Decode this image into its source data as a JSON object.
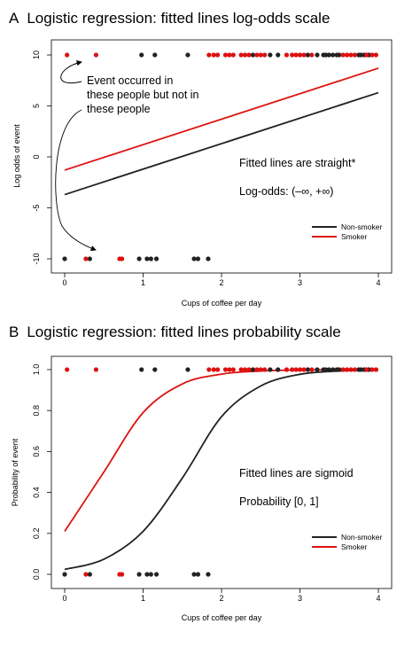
{
  "colors": {
    "nonsmoker": "#222222",
    "smoker": "#dd1111"
  },
  "chart_data": [
    {
      "panel_letter": "A",
      "type": "line",
      "title": "Logistic regression: fitted lines log-odds scale",
      "xlabel": "Cups of coffee per day",
      "ylabel": "Log odds of event",
      "xlim": [
        0,
        4
      ],
      "ylim": [
        -10,
        10
      ],
      "xticks": [
        0,
        1,
        2,
        3,
        4
      ],
      "yticks": [
        -10,
        -5,
        0,
        5,
        10
      ],
      "grid": false,
      "legend_position": "bottom-right",
      "series": [
        {
          "name": "Non-smoker",
          "color": "#222222",
          "x": [
            0,
            4
          ],
          "y": [
            -3.7,
            6.3
          ]
        },
        {
          "name": "Smoker",
          "color": "#dd1111",
          "x": [
            0,
            4
          ],
          "y": [
            -1.3,
            8.7
          ]
        }
      ],
      "points": {
        "nonsmoker_events": [
          0.98,
          1.15,
          1.57,
          2.4,
          2.62,
          2.72,
          3.1,
          3.22,
          3.3,
          3.33,
          3.37,
          3.42,
          3.47,
          3.5,
          3.75,
          3.78,
          3.82,
          3.88
        ],
        "smoker_events": [
          0.03,
          0.4,
          1.84,
          1.9,
          1.95,
          2.05,
          2.1,
          2.15,
          2.25,
          2.3,
          2.35,
          2.45,
          2.5,
          2.55,
          2.83,
          2.9,
          2.95,
          3.0,
          3.05,
          3.15,
          3.55,
          3.6,
          3.65,
          3.7,
          3.85,
          3.92,
          3.97
        ],
        "nonsmoker_no_events": [
          0.0,
          0.32,
          0.95,
          1.05,
          1.1,
          1.17,
          1.65,
          1.7,
          1.83
        ],
        "smoker_no_events": [
          0.27,
          0.7,
          0.73
        ]
      },
      "annotations": {
        "event_text": [
          "Event occurred in",
          "these people but not in",
          "these people"
        ],
        "note1": "Fitted lines are straight*",
        "note2": "Log-odds: (–∞, +∞)"
      }
    },
    {
      "panel_letter": "B",
      "type": "line",
      "title": "Logistic regression: fitted lines probability scale",
      "xlabel": "Cups of coffee per day",
      "ylabel": "Probability of event",
      "xlim": [
        0,
        4
      ],
      "ylim": [
        0,
        1
      ],
      "xticks": [
        0,
        1,
        2,
        3,
        4
      ],
      "yticks": [
        0.0,
        0.2,
        0.4,
        0.6,
        0.8,
        1.0
      ],
      "grid": false,
      "legend_position": "bottom-right",
      "series": [
        {
          "name": "Non-smoker",
          "color": "#222222",
          "x": [
            0,
            0.5,
            1,
            1.5,
            2,
            2.5,
            3,
            3.5,
            4
          ],
          "y": [
            0.024,
            0.074,
            0.21,
            0.47,
            0.77,
            0.92,
            0.977,
            0.993,
            0.998
          ]
        },
        {
          "name": "Smoker",
          "color": "#dd1111",
          "x": [
            0,
            0.5,
            1,
            1.5,
            2,
            2.5,
            3,
            3.5,
            4
          ],
          "y": [
            0.21,
            0.5,
            0.79,
            0.93,
            0.978,
            0.993,
            0.998,
            0.999,
            1.0
          ]
        }
      ],
      "points": {
        "nonsmoker_events": [
          0.98,
          1.15,
          1.57,
          2.4,
          2.62,
          2.72,
          3.1,
          3.22,
          3.3,
          3.33,
          3.37,
          3.42,
          3.47,
          3.5,
          3.75,
          3.78,
          3.82,
          3.88
        ],
        "smoker_events": [
          0.03,
          0.4,
          1.84,
          1.9,
          1.95,
          2.05,
          2.1,
          2.15,
          2.25,
          2.3,
          2.35,
          2.45,
          2.5,
          2.55,
          2.83,
          2.9,
          2.95,
          3.0,
          3.05,
          3.15,
          3.55,
          3.6,
          3.65,
          3.7,
          3.85,
          3.92,
          3.97
        ],
        "nonsmoker_no_events": [
          0.0,
          0.32,
          0.95,
          1.05,
          1.1,
          1.17,
          1.65,
          1.7,
          1.83
        ],
        "smoker_no_events": [
          0.27,
          0.7,
          0.73
        ]
      },
      "annotations": {
        "note1": "Fitted lines are sigmoid",
        "note2": "Probability [0, 1]"
      }
    }
  ]
}
